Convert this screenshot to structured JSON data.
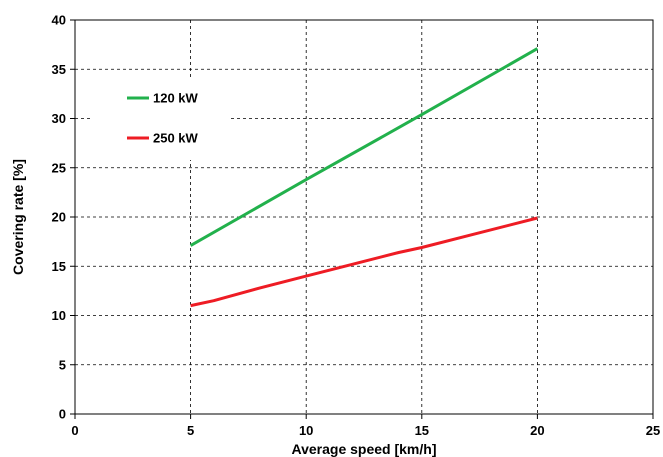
{
  "chart_data": {
    "type": "line",
    "title": "",
    "xlabel": "Average speed [km/h]",
    "ylabel": "Covering rate [%]",
    "xlim": [
      0,
      25
    ],
    "ylim": [
      0,
      40
    ],
    "x_ticks": [
      0,
      5,
      10,
      15,
      20,
      25
    ],
    "y_ticks": [
      0,
      5,
      10,
      15,
      20,
      25,
      30,
      35,
      40
    ],
    "grid": true,
    "grid_style": "dashed",
    "legend_position": "upper-left",
    "series": [
      {
        "name": "120 kW",
        "color": "#22b14c",
        "x": [
          5,
          10,
          15,
          20
        ],
        "y": [
          17.1,
          23.8,
          30.4,
          37.1
        ]
      },
      {
        "name": "250 kW",
        "color": "#ee1c24",
        "x": [
          5,
          6,
          8,
          10,
          12,
          14,
          15,
          17,
          20
        ],
        "y": [
          11.0,
          11.5,
          12.8,
          14.0,
          15.2,
          16.4,
          16.9,
          18.1,
          19.9
        ]
      }
    ]
  }
}
